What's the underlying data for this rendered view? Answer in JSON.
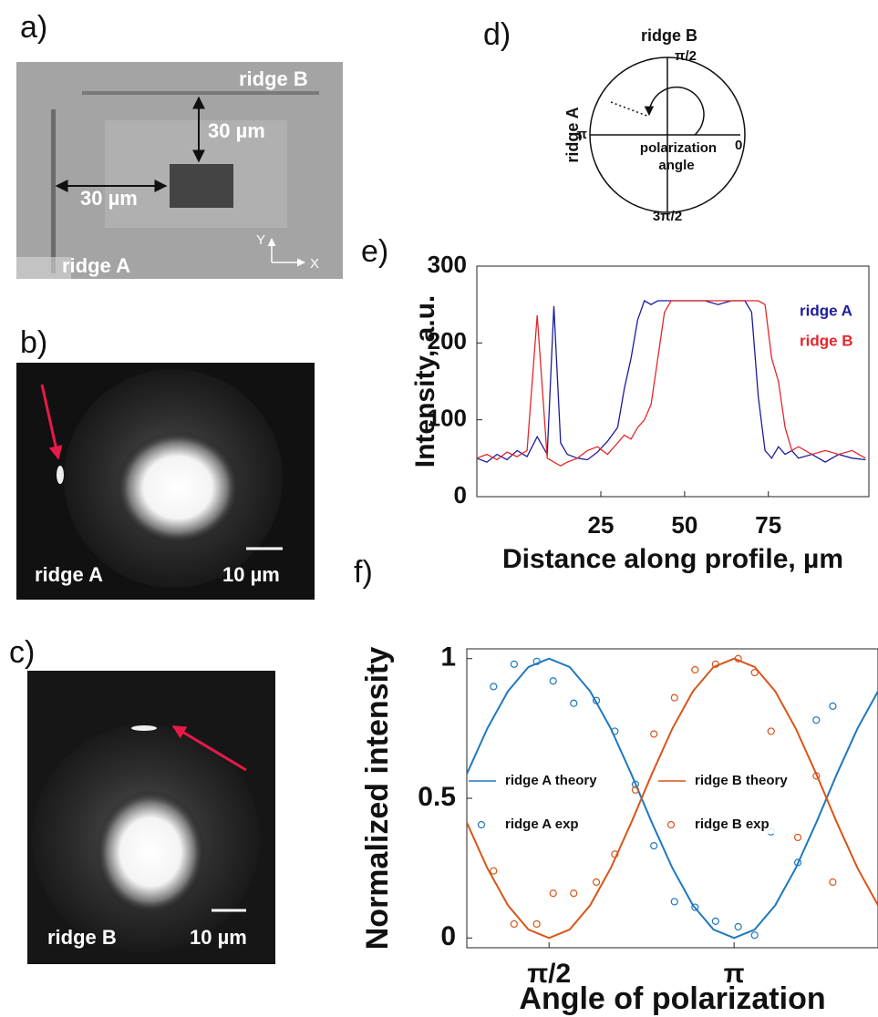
{
  "panels": {
    "a": {
      "label": "a)",
      "ridge_b": "ridge B",
      "dist_y": "30 µm",
      "dist_x": "30 µm",
      "ridge_a": "ridge A",
      "axis_y": "Y",
      "axis_x": "X"
    },
    "b": {
      "label": "b)",
      "name": "ridge A",
      "scale": "10 µm"
    },
    "c": {
      "label": "c)",
      "name": "ridge B",
      "scale": "10 µm"
    },
    "d": {
      "label": "d)",
      "top": "ridge B",
      "left": "ridge A",
      "pi_half": "π/2",
      "pi": "π",
      "zero": "0",
      "three_pi_half": "3π/2",
      "angle_1": "polarization",
      "angle_2": "angle"
    },
    "e": {
      "label": "e)"
    },
    "f": {
      "label": "f)"
    }
  },
  "chart_data": [
    {
      "type": "line",
      "x_label": "Distance along profile, µm",
      "y_label": "Intensity, a.u.",
      "x": [
        -12,
        -9,
        -6,
        -3,
        0,
        3,
        6,
        9,
        11,
        13,
        15,
        18,
        21,
        24,
        27,
        30,
        32,
        34,
        36,
        38,
        40,
        42,
        44,
        46,
        48,
        52,
        56,
        60,
        64,
        68,
        70,
        72,
        74,
        76,
        78,
        80,
        82,
        84,
        88,
        92,
        96,
        100,
        104
      ],
      "series": [
        {
          "name": "ridge A",
          "color": "#1c1c9c",
          "values": [
            50,
            45,
            55,
            48,
            60,
            52,
            78,
            55,
            248,
            70,
            55,
            50,
            48,
            58,
            72,
            90,
            140,
            180,
            230,
            255,
            250,
            255,
            255,
            255,
            255,
            255,
            255,
            250,
            255,
            255,
            240,
            130,
            60,
            50,
            65,
            55,
            60,
            50,
            55,
            45,
            55,
            50,
            48
          ]
        },
        {
          "name": "ridge B",
          "color": "#e3262b",
          "values": [
            50,
            55,
            48,
            58,
            52,
            60,
            236,
            50,
            45,
            40,
            45,
            50,
            60,
            65,
            55,
            70,
            80,
            75,
            90,
            100,
            120,
            180,
            240,
            255,
            255,
            255,
            255,
            255,
            255,
            255,
            255,
            255,
            250,
            180,
            150,
            90,
            60,
            65,
            55,
            60,
            55,
            60,
            50
          ]
        }
      ],
      "xlim": [
        -12,
        105
      ],
      "xticks": [
        25,
        50,
        75
      ],
      "ylim": [
        0,
        300
      ],
      "yticks": [
        0,
        100,
        200,
        300
      ],
      "legend": "upper right"
    },
    {
      "type": "line",
      "x_label": "Angle of polarization",
      "y_label": "Normalized intensity",
      "series": [
        {
          "name": "ridge A theory",
          "kind": "line",
          "color": "#1f78bd",
          "x": [
            50,
            60,
            70,
            80,
            90,
            100,
            110,
            120,
            130,
            140,
            150,
            160,
            170,
            180,
            190,
            200,
            210,
            220,
            230,
            240,
            250
          ],
          "values": [
            0.587,
            0.75,
            0.883,
            0.97,
            1,
            0.97,
            0.883,
            0.75,
            0.587,
            0.413,
            0.25,
            0.117,
            0.03,
            0,
            0.03,
            0.117,
            0.25,
            0.413,
            0.587,
            0.75,
            0.883
          ]
        },
        {
          "name": "ridge A exp",
          "kind": "scatter",
          "color": "#1f78bd",
          "x": [
            63,
            73,
            84,
            92,
            102,
            113,
            122,
            132,
            141,
            151,
            161,
            171,
            182,
            190,
            198,
            211,
            220,
            228
          ],
          "values": [
            0.9,
            0.98,
            0.99,
            0.92,
            0.84,
            0.85,
            0.74,
            0.55,
            0.33,
            0.13,
            0.11,
            0.06,
            0.04,
            0.01,
            0.38,
            0.27,
            0.78,
            0.83
          ]
        },
        {
          "name": "ridge B theory",
          "kind": "line",
          "color": "#d9541a",
          "x": [
            50,
            60,
            70,
            80,
            90,
            100,
            110,
            120,
            130,
            140,
            150,
            160,
            170,
            180,
            190,
            200,
            210,
            220,
            230,
            240,
            250
          ],
          "values": [
            0.413,
            0.25,
            0.117,
            0.03,
            0,
            0.03,
            0.117,
            0.25,
            0.413,
            0.587,
            0.75,
            0.883,
            0.97,
            1,
            0.97,
            0.883,
            0.75,
            0.587,
            0.413,
            0.25,
            0.117
          ]
        },
        {
          "name": "ridge B exp",
          "kind": "scatter",
          "color": "#d9541a",
          "x": [
            63,
            73,
            84,
            92,
            102,
            113,
            122,
            132,
            141,
            151,
            161,
            171,
            182,
            190,
            198,
            211,
            220,
            228
          ],
          "values": [
            0.24,
            0.05,
            0.05,
            0.16,
            0.16,
            0.2,
            0.3,
            0.53,
            0.73,
            0.86,
            0.96,
            0.98,
            1.0,
            0.95,
            0.74,
            0.36,
            0.58,
            0.2
          ]
        }
      ],
      "xlim": [
        50,
        250
      ],
      "xticks": [
        {
          "value": 90,
          "label": "π/2"
        },
        {
          "value": 180,
          "label": "π"
        }
      ],
      "ylim": [
        -0.035,
        1.035
      ],
      "yticks": [
        0,
        0.5,
        1
      ],
      "legend": "left"
    }
  ]
}
